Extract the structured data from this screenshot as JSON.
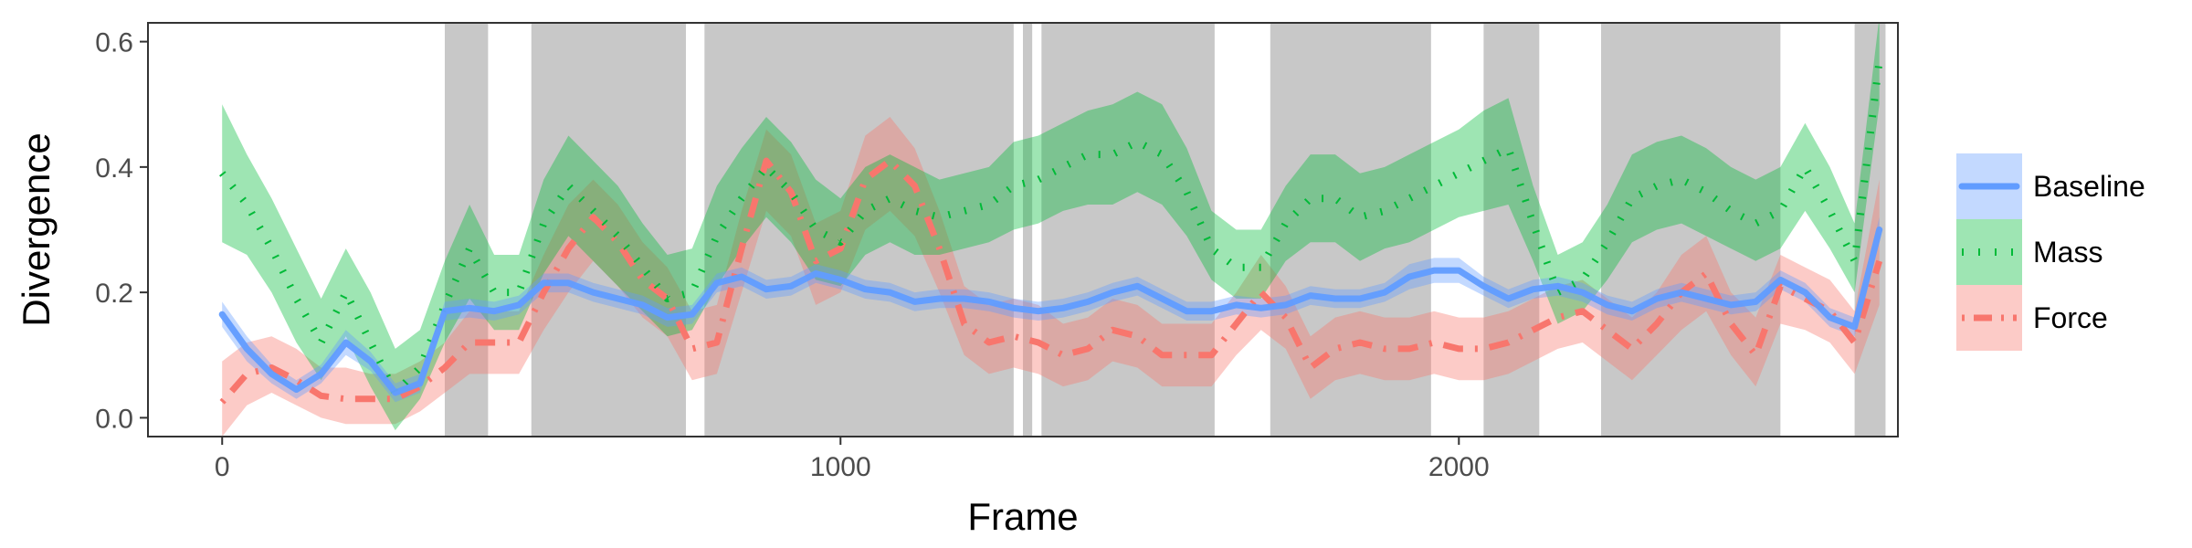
{
  "chart_data": {
    "type": "line",
    "title": "",
    "xlabel": "Frame",
    "ylabel": "Divergence",
    "xlim": [
      -120,
      2710
    ],
    "ylim": [
      -0.03,
      0.63
    ],
    "x_ticks": [
      0,
      1000,
      2000
    ],
    "x_tick_labels": [
      "0",
      "1000",
      "2000"
    ],
    "y_ticks": [
      0.0,
      0.2,
      0.4,
      0.6
    ],
    "y_tick_labels": [
      "0.0",
      "0.2",
      "0.4",
      "0.6"
    ],
    "grid": false,
    "legend_position": "right",
    "shaded_frame_intervals": [
      [
        360,
        430
      ],
      [
        500,
        750
      ],
      [
        780,
        1280
      ],
      [
        1295,
        1310
      ],
      [
        1325,
        1605
      ],
      [
        1695,
        1955
      ],
      [
        2040,
        2130
      ],
      [
        2230,
        2520
      ],
      [
        2640,
        2690
      ]
    ],
    "x": [
      0,
      40,
      80,
      120,
      160,
      200,
      240,
      280,
      320,
      360,
      400,
      440,
      480,
      520,
      560,
      600,
      640,
      680,
      720,
      760,
      800,
      840,
      880,
      920,
      960,
      1000,
      1040,
      1080,
      1120,
      1160,
      1200,
      1240,
      1280,
      1320,
      1360,
      1400,
      1440,
      1480,
      1520,
      1560,
      1600,
      1640,
      1680,
      1720,
      1760,
      1800,
      1840,
      1880,
      1920,
      1960,
      2000,
      2040,
      2080,
      2120,
      2160,
      2200,
      2240,
      2280,
      2320,
      2360,
      2400,
      2440,
      2480,
      2520,
      2560,
      2600,
      2640,
      2680
    ],
    "series": [
      {
        "name": "Baseline",
        "color": "#619CFF",
        "line_style": "solid",
        "values": [
          0.165,
          0.11,
          0.07,
          0.045,
          0.07,
          0.12,
          0.09,
          0.04,
          0.055,
          0.17,
          0.175,
          0.17,
          0.18,
          0.215,
          0.215,
          0.2,
          0.19,
          0.18,
          0.16,
          0.165,
          0.215,
          0.225,
          0.205,
          0.21,
          0.23,
          0.22,
          0.205,
          0.2,
          0.185,
          0.19,
          0.19,
          0.185,
          0.175,
          0.17,
          0.175,
          0.185,
          0.2,
          0.21,
          0.19,
          0.17,
          0.17,
          0.18,
          0.175,
          0.18,
          0.195,
          0.19,
          0.19,
          0.2,
          0.225,
          0.235,
          0.235,
          0.21,
          0.19,
          0.205,
          0.21,
          0.2,
          0.18,
          0.17,
          0.19,
          0.2,
          0.19,
          0.18,
          0.185,
          0.22,
          0.2,
          0.16,
          0.145,
          0.3
        ],
        "lower": [
          0.145,
          0.09,
          0.055,
          0.03,
          0.055,
          0.1,
          0.075,
          0.025,
          0.04,
          0.155,
          0.16,
          0.155,
          0.165,
          0.2,
          0.2,
          0.185,
          0.175,
          0.165,
          0.145,
          0.15,
          0.2,
          0.21,
          0.19,
          0.195,
          0.215,
          0.205,
          0.19,
          0.185,
          0.17,
          0.175,
          0.175,
          0.17,
          0.16,
          0.155,
          0.16,
          0.17,
          0.185,
          0.195,
          0.175,
          0.155,
          0.155,
          0.165,
          0.16,
          0.165,
          0.18,
          0.175,
          0.175,
          0.185,
          0.205,
          0.215,
          0.215,
          0.195,
          0.175,
          0.19,
          0.195,
          0.185,
          0.165,
          0.155,
          0.175,
          0.185,
          0.175,
          0.165,
          0.17,
          0.205,
          0.185,
          0.145,
          0.13,
          0.28
        ],
        "upper": [
          0.185,
          0.13,
          0.085,
          0.06,
          0.085,
          0.14,
          0.105,
          0.055,
          0.07,
          0.185,
          0.19,
          0.185,
          0.195,
          0.23,
          0.23,
          0.215,
          0.205,
          0.195,
          0.175,
          0.18,
          0.23,
          0.24,
          0.22,
          0.225,
          0.245,
          0.235,
          0.22,
          0.215,
          0.2,
          0.205,
          0.205,
          0.2,
          0.19,
          0.185,
          0.19,
          0.2,
          0.215,
          0.225,
          0.205,
          0.185,
          0.185,
          0.195,
          0.19,
          0.195,
          0.21,
          0.205,
          0.205,
          0.215,
          0.245,
          0.255,
          0.255,
          0.225,
          0.205,
          0.22,
          0.225,
          0.215,
          0.195,
          0.185,
          0.205,
          0.215,
          0.205,
          0.195,
          0.2,
          0.235,
          0.215,
          0.175,
          0.16,
          0.32
        ]
      },
      {
        "name": "Mass",
        "color": "#00BA38",
        "line_style": "dotted",
        "values": [
          0.39,
          0.34,
          0.27,
          0.19,
          0.12,
          0.2,
          0.12,
          0.04,
          0.08,
          0.18,
          0.27,
          0.2,
          0.2,
          0.31,
          0.37,
          0.33,
          0.29,
          0.24,
          0.19,
          0.2,
          0.29,
          0.35,
          0.4,
          0.36,
          0.3,
          0.28,
          0.33,
          0.35,
          0.33,
          0.32,
          0.33,
          0.34,
          0.37,
          0.38,
          0.4,
          0.42,
          0.42,
          0.44,
          0.42,
          0.36,
          0.27,
          0.24,
          0.24,
          0.31,
          0.35,
          0.35,
          0.32,
          0.33,
          0.35,
          0.37,
          0.39,
          0.41,
          0.43,
          0.31,
          0.2,
          0.22,
          0.28,
          0.35,
          0.37,
          0.38,
          0.36,
          0.33,
          0.31,
          0.33,
          0.4,
          0.33,
          0.25,
          0.57
        ],
        "lower": [
          0.28,
          0.26,
          0.2,
          0.12,
          0.06,
          0.13,
          0.05,
          -0.02,
          0.03,
          0.12,
          0.19,
          0.14,
          0.14,
          0.23,
          0.29,
          0.25,
          0.21,
          0.17,
          0.13,
          0.14,
          0.21,
          0.27,
          0.32,
          0.28,
          0.22,
          0.21,
          0.26,
          0.28,
          0.26,
          0.26,
          0.27,
          0.28,
          0.3,
          0.31,
          0.33,
          0.34,
          0.34,
          0.36,
          0.34,
          0.29,
          0.22,
          0.19,
          0.19,
          0.25,
          0.28,
          0.28,
          0.25,
          0.27,
          0.28,
          0.3,
          0.32,
          0.33,
          0.34,
          0.25,
          0.15,
          0.17,
          0.22,
          0.28,
          0.3,
          0.31,
          0.29,
          0.27,
          0.25,
          0.27,
          0.33,
          0.27,
          0.2,
          0.5
        ],
        "upper": [
          0.5,
          0.42,
          0.35,
          0.27,
          0.19,
          0.27,
          0.2,
          0.11,
          0.14,
          0.25,
          0.34,
          0.26,
          0.26,
          0.38,
          0.45,
          0.41,
          0.37,
          0.31,
          0.26,
          0.27,
          0.37,
          0.43,
          0.48,
          0.44,
          0.38,
          0.35,
          0.4,
          0.42,
          0.4,
          0.38,
          0.39,
          0.4,
          0.44,
          0.45,
          0.47,
          0.49,
          0.5,
          0.52,
          0.5,
          0.43,
          0.33,
          0.3,
          0.3,
          0.37,
          0.42,
          0.42,
          0.39,
          0.4,
          0.42,
          0.44,
          0.46,
          0.49,
          0.51,
          0.37,
          0.26,
          0.28,
          0.34,
          0.42,
          0.44,
          0.45,
          0.43,
          0.4,
          0.38,
          0.4,
          0.47,
          0.4,
          0.31,
          0.64
        ]
      },
      {
        "name": "Force",
        "color": "#F8766D",
        "line_style": "dotdash",
        "values": [
          0.025,
          0.07,
          0.08,
          0.06,
          0.035,
          0.03,
          0.03,
          0.03,
          0.05,
          0.08,
          0.12,
          0.12,
          0.12,
          0.2,
          0.27,
          0.32,
          0.28,
          0.22,
          0.19,
          0.11,
          0.12,
          0.27,
          0.41,
          0.36,
          0.25,
          0.27,
          0.38,
          0.41,
          0.37,
          0.27,
          0.15,
          0.12,
          0.13,
          0.12,
          0.1,
          0.11,
          0.14,
          0.13,
          0.1,
          0.1,
          0.1,
          0.15,
          0.2,
          0.16,
          0.08,
          0.11,
          0.12,
          0.11,
          0.11,
          0.12,
          0.11,
          0.11,
          0.12,
          0.14,
          0.16,
          0.17,
          0.14,
          0.11,
          0.15,
          0.2,
          0.23,
          0.15,
          0.1,
          0.21,
          0.19,
          0.17,
          0.12,
          0.25
        ],
        "lower": [
          -0.03,
          0.02,
          0.04,
          0.02,
          0.0,
          -0.01,
          -0.01,
          -0.01,
          0.01,
          0.04,
          0.07,
          0.07,
          0.07,
          0.14,
          0.2,
          0.25,
          0.21,
          0.16,
          0.13,
          0.06,
          0.07,
          0.2,
          0.33,
          0.29,
          0.18,
          0.2,
          0.3,
          0.33,
          0.29,
          0.2,
          0.1,
          0.07,
          0.08,
          0.07,
          0.05,
          0.06,
          0.09,
          0.08,
          0.05,
          0.05,
          0.05,
          0.1,
          0.14,
          0.11,
          0.03,
          0.06,
          0.07,
          0.06,
          0.06,
          0.07,
          0.06,
          0.06,
          0.07,
          0.09,
          0.11,
          0.12,
          0.09,
          0.06,
          0.1,
          0.14,
          0.17,
          0.1,
          0.05,
          0.15,
          0.14,
          0.12,
          0.07,
          0.18
        ],
        "upper": [
          0.09,
          0.12,
          0.13,
          0.11,
          0.08,
          0.08,
          0.07,
          0.07,
          0.09,
          0.12,
          0.17,
          0.17,
          0.17,
          0.26,
          0.34,
          0.38,
          0.34,
          0.28,
          0.24,
          0.17,
          0.18,
          0.33,
          0.46,
          0.42,
          0.31,
          0.33,
          0.45,
          0.48,
          0.43,
          0.33,
          0.21,
          0.18,
          0.19,
          0.18,
          0.15,
          0.16,
          0.19,
          0.18,
          0.15,
          0.15,
          0.15,
          0.2,
          0.26,
          0.21,
          0.13,
          0.16,
          0.17,
          0.16,
          0.16,
          0.17,
          0.16,
          0.16,
          0.17,
          0.19,
          0.21,
          0.22,
          0.19,
          0.16,
          0.2,
          0.26,
          0.29,
          0.2,
          0.16,
          0.26,
          0.24,
          0.22,
          0.17,
          0.38
        ]
      }
    ]
  }
}
